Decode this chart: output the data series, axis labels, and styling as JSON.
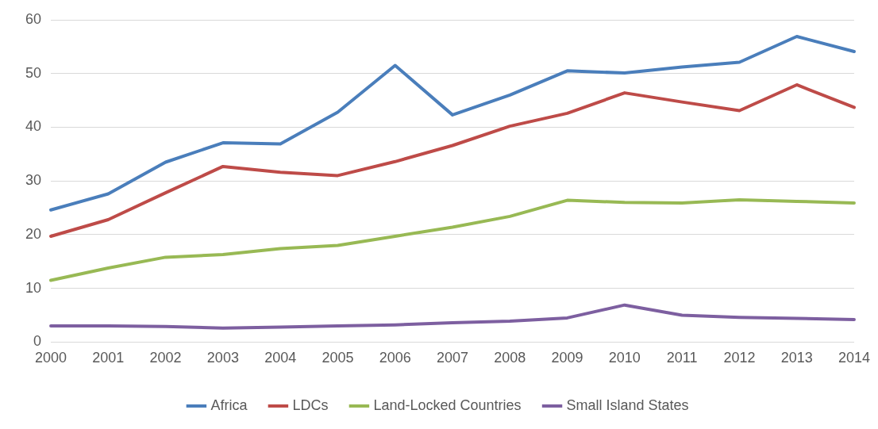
{
  "chart_data": {
    "type": "line",
    "categories": [
      "2000",
      "2001",
      "2002",
      "2003",
      "2004",
      "2005",
      "2006",
      "2007",
      "2008",
      "2009",
      "2010",
      "2011",
      "2012",
      "2013",
      "2014"
    ],
    "series": [
      {
        "name": "Africa",
        "color": "#4a7ebb",
        "values": [
          24.6,
          27.6,
          33.5,
          37.1,
          36.9,
          42.8,
          51.5,
          42.3,
          46.0,
          50.5,
          50.1,
          51.2,
          52.1,
          56.9,
          54.1
        ]
      },
      {
        "name": "LDCs",
        "color": "#be4b48",
        "values": [
          19.7,
          22.8,
          27.8,
          32.7,
          31.6,
          31.0,
          33.6,
          36.6,
          40.2,
          42.6,
          46.4,
          44.7,
          43.1,
          47.9,
          43.7
        ]
      },
      {
        "name": "Land-Locked Countries",
        "color": "#98b954",
        "values": [
          11.5,
          13.8,
          15.8,
          16.3,
          17.4,
          18.0,
          19.7,
          21.4,
          23.4,
          26.4,
          26.0,
          25.9,
          26.5,
          26.2,
          25.9
        ]
      },
      {
        "name": "Small Island States",
        "color": "#7d5fa0",
        "values": [
          3.0,
          3.0,
          2.9,
          2.6,
          2.8,
          3.0,
          3.2,
          3.6,
          3.9,
          4.5,
          6.9,
          5.0,
          4.6,
          4.4,
          4.2
        ]
      }
    ],
    "ylim": [
      0,
      60
    ],
    "yticks": [
      0,
      10,
      20,
      30,
      40,
      50,
      60
    ],
    "grid": "y",
    "legend": "bottom",
    "marker": "none",
    "line_style": "solid"
  }
}
